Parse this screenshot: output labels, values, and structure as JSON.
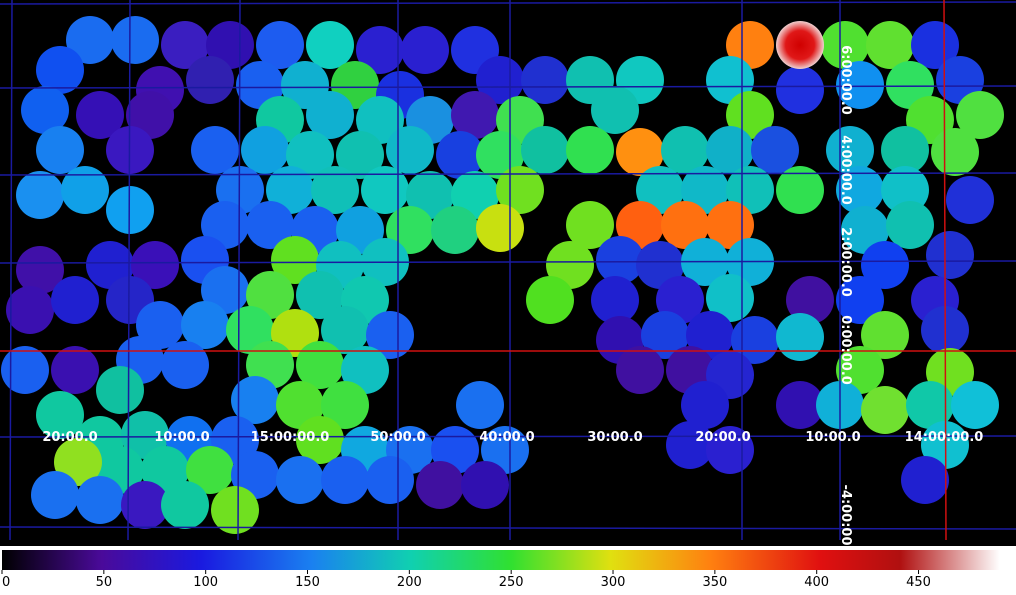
{
  "image": {
    "ra_labels": [
      "20:00.0",
      "10:00.0",
      "15:00:00.0",
      "50:00.0",
      "40:00.0",
      "30:00.0",
      "20:00.0",
      "10:00.0",
      "14:00:00.0"
    ],
    "dec_labels": [
      "6:00:00.0",
      "4:00:00.0",
      "2:00:00.0",
      "0:00:00.0",
      "-4:00:00.0"
    ]
  },
  "colorbar": {
    "range": [
      0,
      490
    ],
    "ticks": [
      0,
      50,
      100,
      150,
      200,
      250,
      300,
      350,
      400,
      450
    ]
  }
}
